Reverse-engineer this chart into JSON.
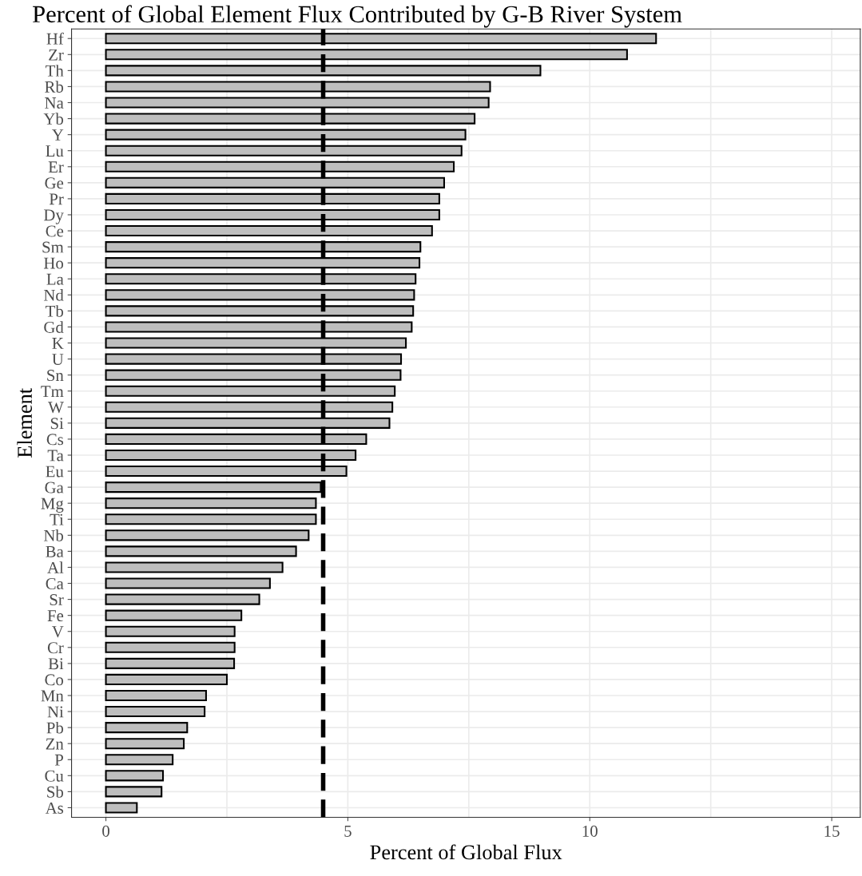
{
  "chart_data": {
    "type": "bar",
    "orientation": "horizontal",
    "title": "Percent of Global Element Flux Contributed by G-B River System",
    "xlabel": "Percent of Global Flux",
    "ylabel": "Element",
    "categories": [
      "Hf",
      "Zr",
      "Th",
      "Rb",
      "Na",
      "Yb",
      "Y",
      "Lu",
      "Er",
      "Ge",
      "Pr",
      "Dy",
      "Ce",
      "Sm",
      "Ho",
      "La",
      "Nd",
      "Tb",
      "Gd",
      "K",
      "U",
      "Sn",
      "Tm",
      "W",
      "Si",
      "Cs",
      "Ta",
      "Eu",
      "Ga",
      "Mg",
      "Ti",
      "Nb",
      "Ba",
      "Al",
      "Ca",
      "Sr",
      "Fe",
      "V",
      "Cr",
      "Bi",
      "Co",
      "Mn",
      "Ni",
      "Pb",
      "Zn",
      "P",
      "Cu",
      "Sb",
      "As"
    ],
    "values": [
      11.37,
      10.77,
      8.98,
      7.94,
      7.91,
      7.62,
      7.43,
      7.35,
      7.19,
      6.99,
      6.89,
      6.89,
      6.74,
      6.5,
      6.48,
      6.4,
      6.37,
      6.35,
      6.32,
      6.2,
      6.1,
      6.09,
      5.97,
      5.92,
      5.86,
      5.38,
      5.16,
      4.97,
      4.44,
      4.34,
      4.34,
      4.19,
      3.93,
      3.65,
      3.39,
      3.17,
      2.8,
      2.66,
      2.66,
      2.65,
      2.5,
      2.07,
      2.04,
      1.68,
      1.61,
      1.38,
      1.18,
      1.15,
      0.64
    ],
    "color": "#bebebe",
    "xlim": [
      -0.71,
      15.59
    ],
    "xticks": [
      0,
      {
        "value": 2.5,
        "label": null
      },
      5,
      {
        "value": 7.5,
        "label": null
      },
      10,
      {
        "value": 12.5,
        "label": null
      },
      15
    ],
    "ref_lines": [
      {
        "axis": "x",
        "value": 4.49,
        "label": null,
        "color": "#000000",
        "line_style": "dashed"
      }
    ],
    "grid": true,
    "legend": false
  }
}
